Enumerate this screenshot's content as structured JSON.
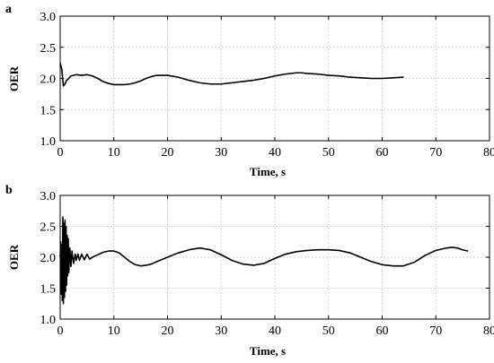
{
  "chart_data": [
    {
      "panel_label": "a",
      "type": "line",
      "xlabel": "Time, s",
      "ylabel": "OER",
      "xlim": [
        0,
        80
      ],
      "ylim": [
        1.0,
        3.0
      ],
      "xticks": [
        "0",
        "10",
        "20",
        "30",
        "40",
        "50",
        "60",
        "70",
        "80"
      ],
      "yticks": [
        "1.0",
        "1.5",
        "2.0",
        "2.5",
        "3.0"
      ],
      "grid": true,
      "series": [
        {
          "color": "#000000",
          "x": [
            0,
            0.3,
            0.6,
            0.9,
            1.2,
            1.6,
            2.0,
            2.5,
            3,
            4,
            5,
            6,
            7,
            8,
            9,
            10,
            11,
            12,
            13,
            14,
            15,
            16,
            17,
            18,
            19,
            20,
            22,
            24,
            26,
            28,
            30,
            32,
            34,
            36,
            38,
            40,
            42,
            44,
            45,
            46,
            48,
            50,
            52,
            54,
            56,
            58,
            60,
            62,
            64
          ],
          "y": [
            2.25,
            2.15,
            1.88,
            1.91,
            1.97,
            2.0,
            2.04,
            2.05,
            2.06,
            2.05,
            2.06,
            2.04,
            2.0,
            1.95,
            1.92,
            1.9,
            1.9,
            1.9,
            1.91,
            1.93,
            1.96,
            2.0,
            2.03,
            2.05,
            2.05,
            2.05,
            2.02,
            1.97,
            1.93,
            1.91,
            1.91,
            1.93,
            1.95,
            1.97,
            2.0,
            2.04,
            2.07,
            2.09,
            2.09,
            2.08,
            2.07,
            2.05,
            2.04,
            2.02,
            2.01,
            2.0,
            2.0,
            2.01,
            2.02
          ]
        }
      ]
    },
    {
      "panel_label": "b",
      "type": "line",
      "xlabel": "Time, s",
      "ylabel": "OER",
      "xlim": [
        0,
        80
      ],
      "ylim": [
        1.0,
        3.0
      ],
      "xticks": [
        "0",
        "10",
        "20",
        "30",
        "40",
        "50",
        "60",
        "70",
        "80"
      ],
      "yticks": [
        "1.0",
        "1.5",
        "2.0",
        "2.5",
        "3.0"
      ],
      "grid": true,
      "series": [
        {
          "color": "#000000",
          "x": [
            0,
            0.1,
            0.2,
            0.3,
            0.4,
            0.5,
            0.6,
            0.7,
            0.8,
            0.9,
            1.0,
            1.1,
            1.2,
            1.3,
            1.4,
            1.5,
            1.6,
            1.8,
            2.0,
            2.2,
            2.5,
            2.8,
            3.0,
            3.3,
            3.6,
            4.0,
            4.5,
            5.0,
            5.5,
            6.0,
            7,
            8,
            9,
            10,
            11,
            12,
            13,
            14,
            15,
            16,
            17,
            18,
            20,
            22,
            24,
            26,
            28,
            30,
            32,
            34,
            36,
            38,
            40,
            42,
            44,
            46,
            48,
            50,
            52,
            54,
            56,
            58,
            60,
            62,
            64,
            66,
            68,
            70,
            72,
            73,
            74,
            75,
            76
          ],
          "y": [
            2.0,
            2.25,
            1.4,
            2.2,
            1.3,
            2.65,
            1.25,
            2.55,
            1.35,
            2.6,
            1.45,
            2.5,
            1.55,
            2.35,
            1.7,
            2.3,
            1.75,
            2.15,
            1.85,
            2.1,
            1.9,
            2.05,
            1.95,
            2.05,
            1.95,
            2.05,
            1.96,
            2.05,
            1.97,
            2.0,
            2.04,
            2.08,
            2.1,
            2.1,
            2.07,
            2.0,
            1.93,
            1.88,
            1.86,
            1.87,
            1.89,
            1.93,
            2.0,
            2.07,
            2.12,
            2.15,
            2.12,
            2.04,
            1.95,
            1.89,
            1.87,
            1.9,
            1.98,
            2.05,
            2.09,
            2.11,
            2.12,
            2.12,
            2.11,
            2.07,
            2.0,
            1.93,
            1.88,
            1.86,
            1.86,
            1.92,
            2.03,
            2.11,
            2.15,
            2.16,
            2.15,
            2.12,
            2.1
          ]
        }
      ]
    }
  ]
}
